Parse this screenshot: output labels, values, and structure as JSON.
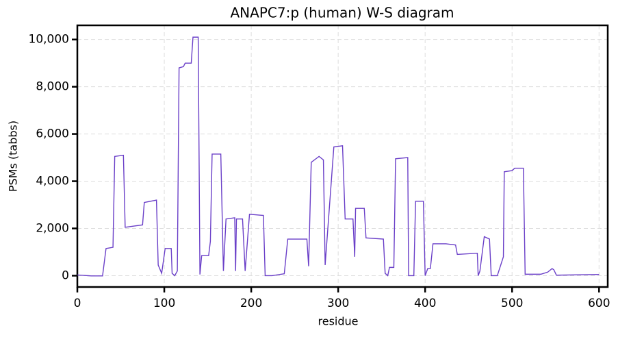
{
  "chart_data": {
    "type": "line",
    "title": "ANAPC7:p (human) W-S diagram",
    "xlabel": "residue",
    "ylabel": "PSMs (tabbs)",
    "x": [
      0,
      16,
      29,
      33,
      41,
      43,
      53,
      55,
      65,
      75,
      77,
      91,
      93,
      97,
      101,
      108,
      109,
      112,
      115,
      117,
      122,
      124,
      131,
      133,
      139,
      141,
      143,
      151,
      153,
      155,
      165,
      168,
      171,
      181,
      182,
      183,
      190,
      193,
      198,
      214,
      216,
      224,
      238,
      242,
      264,
      266,
      269,
      278,
      283,
      285,
      295,
      305,
      308,
      317,
      319,
      320,
      330,
      332,
      352,
      354,
      357,
      359,
      364,
      366,
      380,
      381,
      387,
      389,
      398,
      400,
      403,
      406,
      409,
      424,
      435,
      437,
      460,
      461,
      463,
      468,
      474,
      476,
      483,
      490,
      491,
      500,
      503,
      513,
      515,
      533,
      541,
      546,
      548,
      551,
      600
    ],
    "series": [
      {
        "name": "ANAPC7:p",
        "color": "#6a3fc8",
        "values": [
          30,
          -10,
          -10,
          1150,
          1200,
          5050,
          5100,
          2050,
          2100,
          2150,
          3100,
          3200,
          450,
          100,
          1150,
          1150,
          100,
          0,
          200,
          8800,
          8850,
          9000,
          9000,
          10100,
          10100,
          50,
          850,
          850,
          1450,
          5150,
          5150,
          200,
          2400,
          2450,
          200,
          2400,
          2400,
          200,
          2600,
          2550,
          0,
          0,
          80,
          1550,
          1550,
          400,
          4800,
          5050,
          4900,
          450,
          5450,
          5500,
          2400,
          2400,
          800,
          2850,
          2850,
          1600,
          1550,
          100,
          0,
          350,
          350,
          4950,
          5000,
          0,
          0,
          3150,
          3150,
          0,
          300,
          300,
          1350,
          1350,
          1300,
          900,
          950,
          0,
          200,
          1650,
          1550,
          0,
          0,
          800,
          4400,
          4450,
          4550,
          4550,
          60,
          60,
          150,
          300,
          250,
          20,
          50
        ]
      }
    ],
    "xlim": [
      0,
      610
    ],
    "ylim": [
      -480,
      10600
    ],
    "xticks": [
      0,
      100,
      200,
      300,
      400,
      500,
      600
    ],
    "yticks": [
      0,
      {
        "value": 2000,
        "label": "2,000"
      },
      {
        "value": 4000,
        "label": "4,000"
      },
      {
        "value": 6000,
        "label": "6,000"
      },
      {
        "value": 8000,
        "label": "8,000"
      },
      {
        "value": 10000,
        "label": "10,000"
      }
    ],
    "grid": true
  }
}
